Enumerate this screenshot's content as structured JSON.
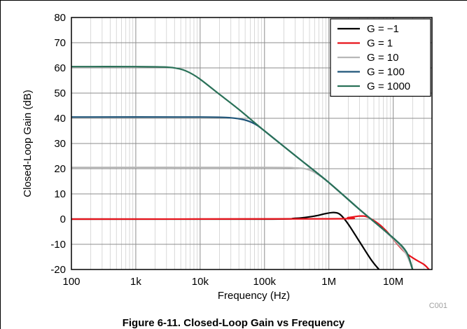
{
  "figure_code": "C001",
  "caption": "Figure 6-11. Closed-Loop Gain vs Frequency",
  "chart_data": {
    "type": "line",
    "title": "",
    "xlabel": "Frequency (Hz)",
    "ylabel": "Closed-Loop Gain (dB)",
    "xscale": "log",
    "xlim": [
      100,
      40000000
    ],
    "ylim": [
      -20,
      80
    ],
    "grid": true,
    "legend_position": "top-right",
    "x_ticks": [
      100,
      1000,
      10000,
      100000,
      1000000,
      10000000
    ],
    "x_tick_labels": [
      "100",
      "1k",
      "10k",
      "100k",
      "1M",
      "10M"
    ],
    "y_ticks": [
      -20,
      -10,
      0,
      10,
      20,
      30,
      40,
      50,
      60,
      70,
      80
    ],
    "y_tick_labels": [
      "-20",
      "-10",
      "0",
      "10",
      "20",
      "30",
      "40",
      "50",
      "60",
      "70",
      "80"
    ],
    "series": [
      {
        "name": "G = −1",
        "color": "#000000",
        "x": [
          100,
          100000,
          300000,
          600000,
          900000,
          1200000,
          1500000,
          2000000,
          3000000,
          4500000,
          6000000
        ],
        "y": [
          0,
          0,
          0.3,
          1.2,
          2.2,
          2.6,
          1.8,
          -2,
          -9,
          -16,
          -20
        ]
      },
      {
        "name": "G = 1",
        "color": "#e8131b",
        "x": [
          100,
          1000000,
          2000000,
          3000000,
          4000000,
          6000000,
          8000000,
          10000000,
          15000000,
          22000000,
          30000000,
          36000000
        ],
        "y": [
          0,
          0.1,
          0.6,
          1.2,
          0.8,
          -2,
          -5,
          -8,
          -13,
          -16,
          -18,
          -20
        ]
      },
      {
        "name": "G = 10",
        "color": "#b8b8b8",
        "x": [
          100,
          100000,
          300000,
          500000,
          800000,
          1000000,
          1500000,
          2000000,
          3000000,
          5000000,
          8000000,
          12000000,
          16000000,
          20000000
        ],
        "y": [
          20.5,
          20.5,
          20.3,
          19.5,
          16.5,
          14.5,
          10.5,
          7.8,
          3.8,
          -1,
          -5.5,
          -10,
          -14,
          -20
        ]
      },
      {
        "name": "G = 100",
        "color": "#1f5579",
        "x": [
          100,
          10000,
          30000,
          50000,
          70000,
          100000,
          300000,
          1000000,
          3000000,
          10000000,
          16000000,
          20000000
        ],
        "y": [
          40.5,
          40.5,
          40.2,
          39.3,
          37.8,
          35,
          25.2,
          14.5,
          3.8,
          -7.5,
          -13,
          -20
        ]
      },
      {
        "name": "G = 1000",
        "color": "#2a7158",
        "x": [
          100,
          1000,
          3000,
          5000,
          7000,
          10000,
          20000,
          40000,
          100000,
          300000,
          1000000,
          3000000,
          10000000,
          16000000,
          20000000
        ],
        "y": [
          60.5,
          60.5,
          60.3,
          59.5,
          58,
          55.5,
          49.5,
          43.5,
          35,
          25.2,
          14.5,
          3.8,
          -7.5,
          -13,
          -20
        ]
      }
    ]
  }
}
